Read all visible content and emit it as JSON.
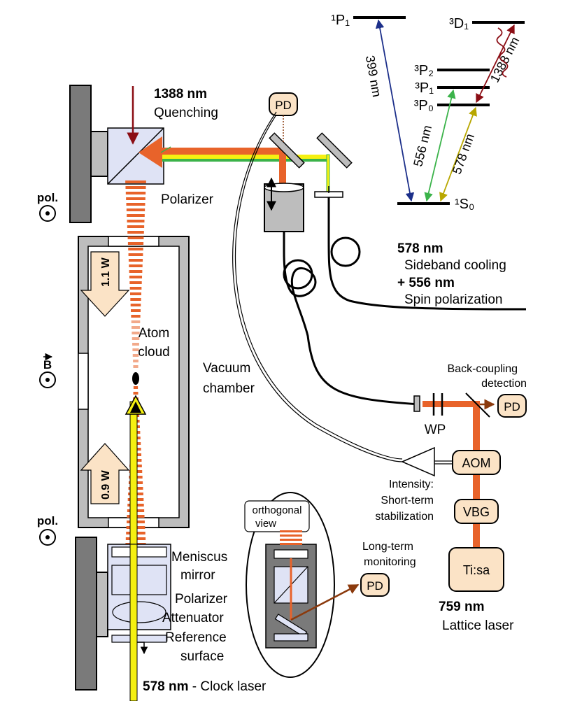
{
  "colors": {
    "lattice_beam": "#e8632a",
    "clock_beam": "#f5f011",
    "green_beam": "#3bb34a",
    "blue_transition": "#1c2f8a",
    "red_transition": "#8b0d14",
    "box_fill": "#fbe3c6"
  },
  "levels": {
    "p1": "¹P₁",
    "d1": "³D₁",
    "p2": "³P₂",
    "p1t": "³P₁",
    "p0": "³P₀",
    "s0": "¹S₀"
  },
  "transitions": {
    "t399": "399 nm",
    "t556": "556 nm",
    "t578": "578 nm",
    "t1388": "1388 nm"
  },
  "labels": {
    "quench_wl": "1388 nm",
    "quench_name": "Quenching",
    "polarizer_top": "Polarizer",
    "pol_top": "pol.",
    "pol_bottom": "pol.",
    "b_field": "B",
    "power_top": "1.1 W",
    "power_bottom": "0.9 W",
    "atom1": "Atom",
    "atom2": "cloud",
    "vac1": "Vacuum",
    "vac2": "chamber",
    "sideband_wl": "578 nm",
    "sideband_name": "Sideband cooling",
    "spin_wl": "+ 556 nm",
    "spin_name": "Spin polarization",
    "backcoupling1": "Back-coupling",
    "backcoupling2": "detection",
    "wp": "WP",
    "intensity1": "Intensity:",
    "intensity2": "Short-term",
    "intensity3": "stabilization",
    "longterm1": "Long-term",
    "longterm2": "monitoring",
    "orth1": "orthogonal",
    "orth2": "view",
    "meniscus1": "Meniscus",
    "meniscus2": "mirror",
    "polarizer_bottom": "Polarizer",
    "attenuator": "Attenuator",
    "reference1": "Reference",
    "reference2": "surface",
    "clock_wl": "578 nm",
    "clock_name": " - Clock laser",
    "lattice_wl": "759 nm",
    "lattice_name": "Lattice laser"
  },
  "boxes": {
    "pd_top": "PD",
    "pd_right": "PD",
    "pd_bottom": "PD",
    "aom": "AOM",
    "vbg": "VBG",
    "tisa": "Ti:sa"
  }
}
